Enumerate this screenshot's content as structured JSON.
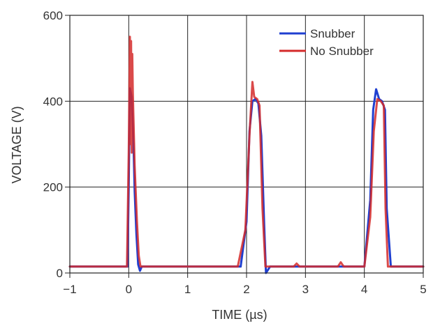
{
  "chart_data": {
    "type": "line",
    "xlabel": "TIME (µs)",
    "ylabel": "VOLTAGE (V)",
    "xlim": [
      -1,
      5
    ],
    "ylim": [
      0,
      600
    ],
    "xticks": [
      -1,
      0,
      1,
      2,
      3,
      4,
      5
    ],
    "yticks": [
      0,
      200,
      400,
      600
    ],
    "grid": true,
    "legend_position": "top-right",
    "series": [
      {
        "name": "Snubber",
        "color": "#1f3fd0",
        "x": [
          -1.0,
          -0.02,
          0.0,
          0.02,
          0.05,
          0.08,
          0.1,
          0.13,
          0.16,
          0.19,
          0.22,
          1.9,
          2.0,
          2.05,
          2.1,
          2.15,
          2.2,
          2.25,
          2.3,
          2.33,
          2.4,
          4.0,
          4.1,
          4.15,
          4.2,
          4.25,
          4.3,
          4.35,
          4.38,
          4.45,
          5.0
        ],
        "y": [
          15,
          15,
          200,
          430,
          410,
          300,
          190,
          90,
          20,
          5,
          15,
          15,
          120,
          330,
          400,
          405,
          395,
          320,
          110,
          0,
          15,
          15,
          170,
          380,
          428,
          405,
          400,
          380,
          150,
          15,
          15
        ]
      },
      {
        "name": "No Snubber",
        "color": "#d42a2a",
        "x": [
          -1.0,
          -0.03,
          0.0,
          0.02,
          0.03,
          0.04,
          0.05,
          0.06,
          0.07,
          0.1,
          0.14,
          0.17,
          0.2,
          1.85,
          1.98,
          2.05,
          2.1,
          2.13,
          2.18,
          2.22,
          2.27,
          2.32,
          2.4,
          2.8,
          2.85,
          2.9,
          3.55,
          3.6,
          3.65,
          4.0,
          4.1,
          4.16,
          4.22,
          4.28,
          4.33,
          4.36,
          4.4,
          5.0
        ],
        "y": [
          15,
          15,
          280,
          550,
          300,
          540,
          280,
          510,
          420,
          250,
          120,
          40,
          15,
          15,
          100,
          320,
          445,
          410,
          405,
          390,
          150,
          15,
          15,
          15,
          22,
          15,
          15,
          25,
          15,
          15,
          130,
          330,
          405,
          400,
          390,
          150,
          15,
          15
        ]
      }
    ]
  }
}
